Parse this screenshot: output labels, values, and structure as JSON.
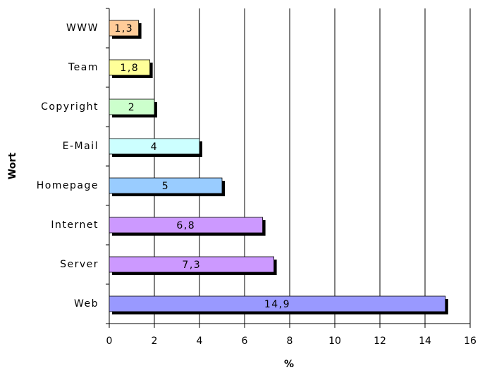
{
  "chart_data": {
    "type": "bar",
    "orientation": "horizontal",
    "categories": [
      "WWW",
      "Team",
      "Copyright",
      "E-Mail",
      "Homepage",
      "Internet",
      "Server",
      "Web"
    ],
    "values": [
      1.3,
      1.8,
      2,
      4,
      5,
      6.8,
      7.3,
      14.9
    ],
    "value_labels": [
      "1,3",
      "1,8",
      "2",
      "4",
      "5",
      "6,8",
      "7,3",
      "14,9"
    ],
    "colors": [
      "#ffcc99",
      "#ffff99",
      "#ccffcc",
      "#ccffff",
      "#99ccff",
      "#cc99ff",
      "#cc99ff",
      "#9999ff"
    ],
    "xlabel": "%",
    "ylabel": "Wort",
    "xlim": [
      0,
      16
    ],
    "xticks": [
      0,
      2,
      4,
      6,
      8,
      10,
      12,
      14,
      16
    ],
    "grid": true
  }
}
